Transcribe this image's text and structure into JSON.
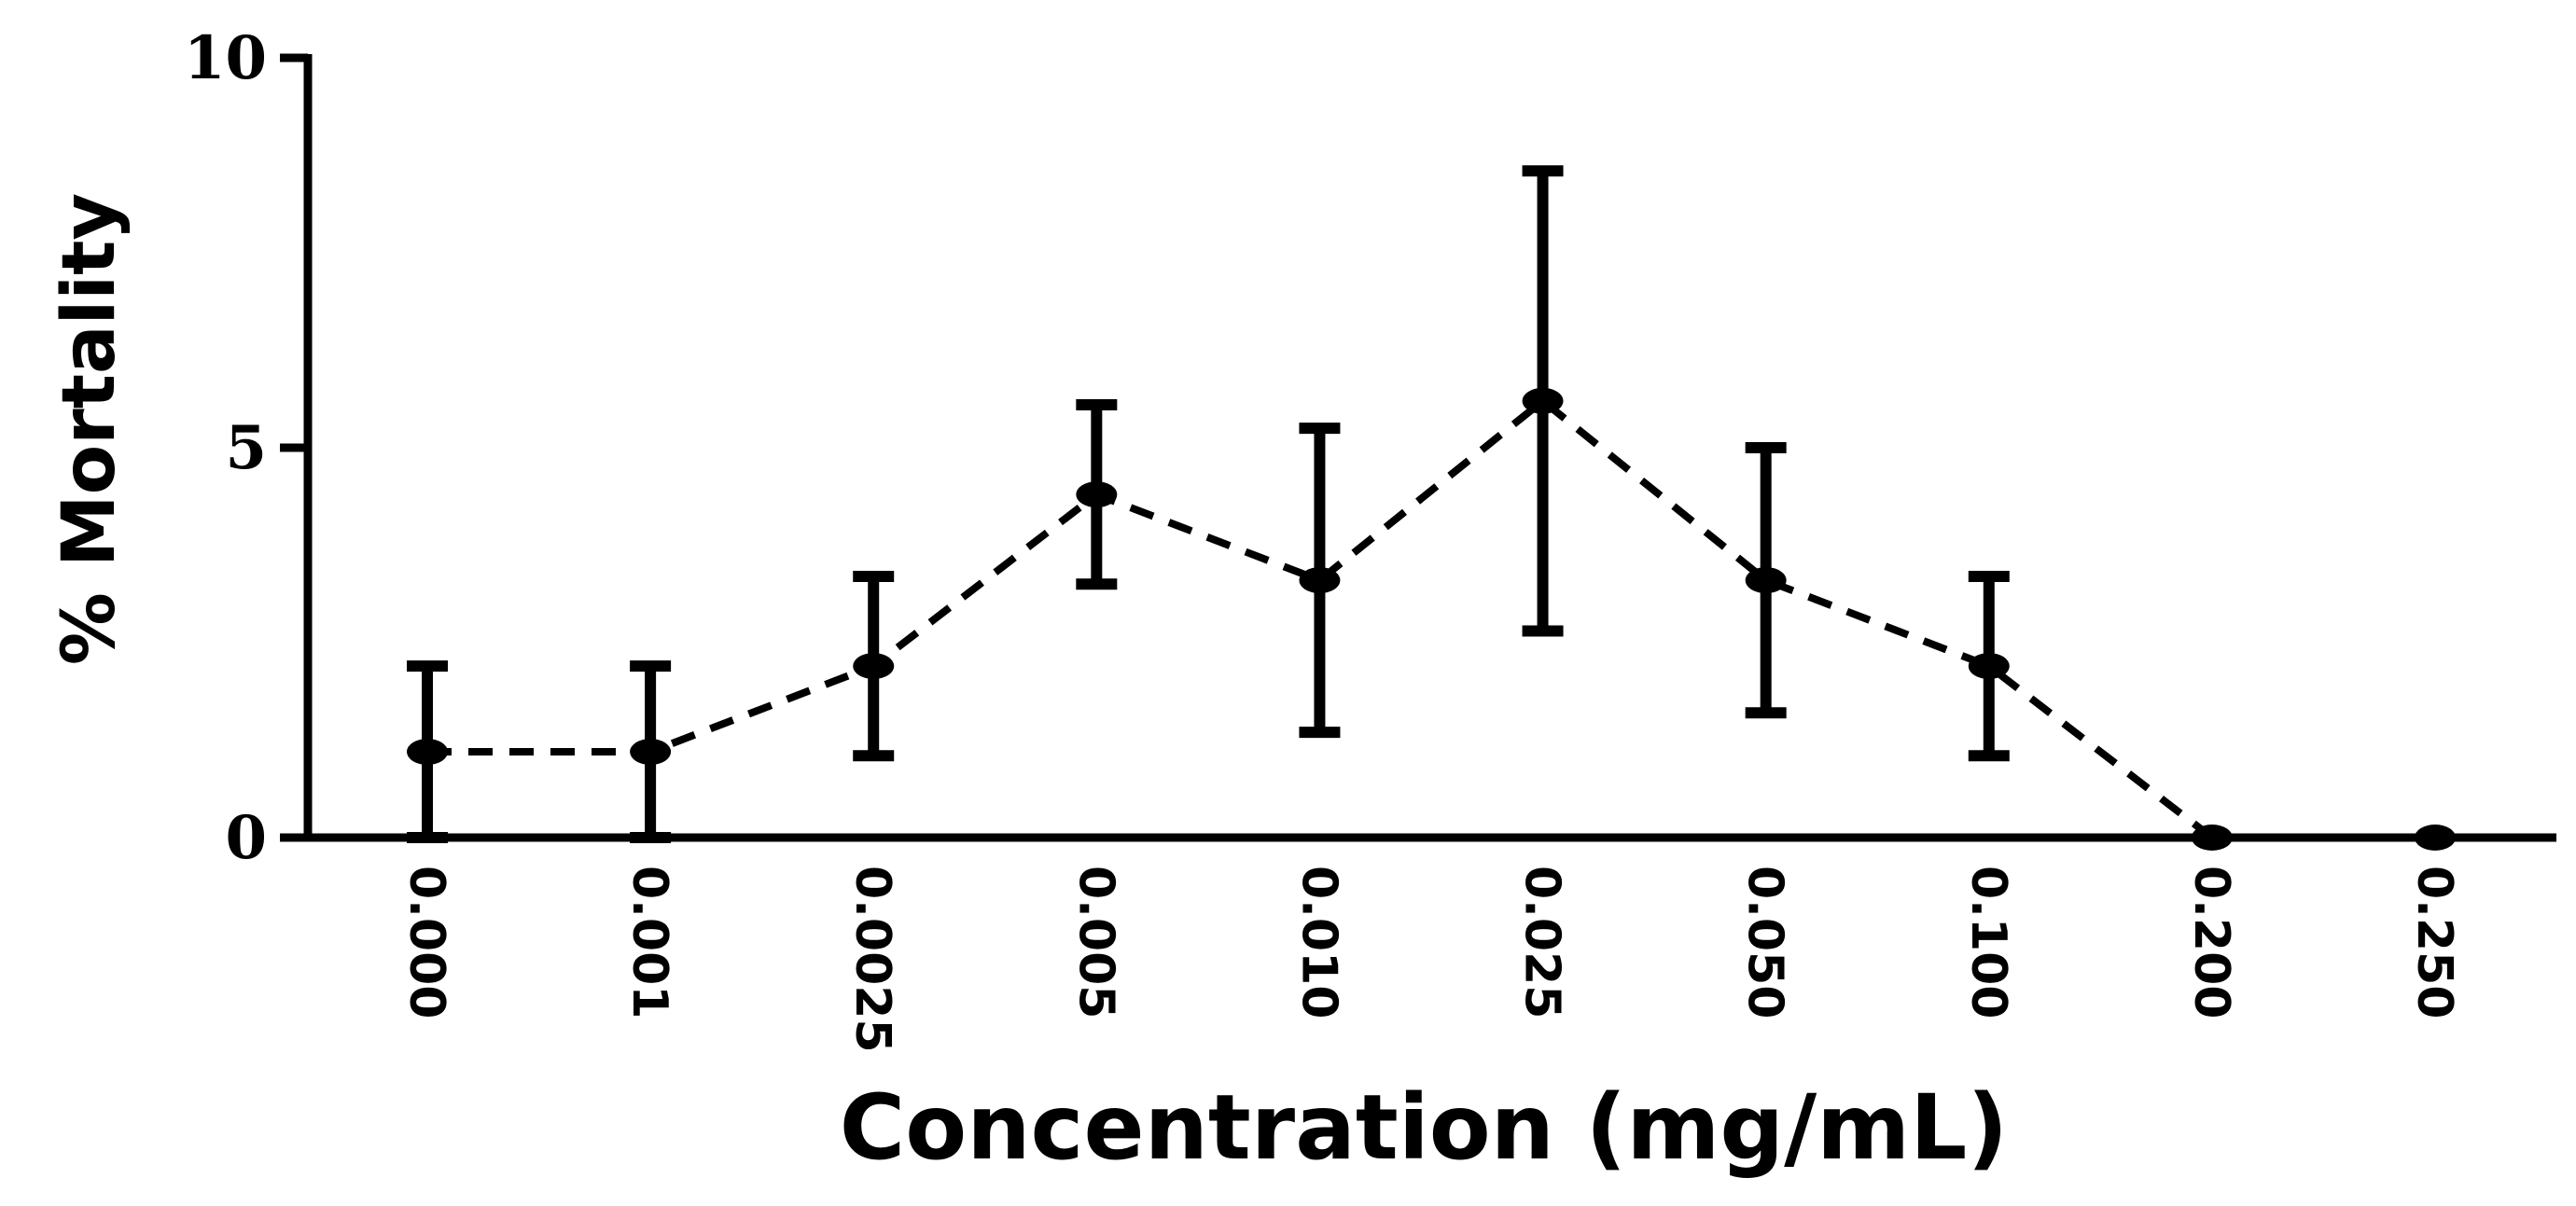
{
  "chart_data": {
    "type": "line",
    "title": "",
    "xlabel": "Concentration (mg/mL)",
    "ylabel": "% Mortality",
    "categories": [
      "0.000",
      "0.001",
      "0.0025",
      "0.005",
      "0.010",
      "0.025",
      "0.050",
      "0.100",
      "0.200",
      "0.250"
    ],
    "series": [
      {
        "values": [
          1.1,
          1.1,
          2.2,
          4.4,
          3.3,
          5.6,
          3.3,
          2.2,
          0,
          0
        ],
        "error": [
          1.1,
          1.1,
          1.15,
          1.15,
          1.95,
          2.95,
          1.7,
          1.15,
          0,
          0
        ],
        "line_style": "dashed",
        "color": "#000000"
      }
    ],
    "ylim": [
      0,
      10
    ],
    "yticks": [
      0,
      5,
      10
    ],
    "grid": false,
    "error_bars": true
  }
}
